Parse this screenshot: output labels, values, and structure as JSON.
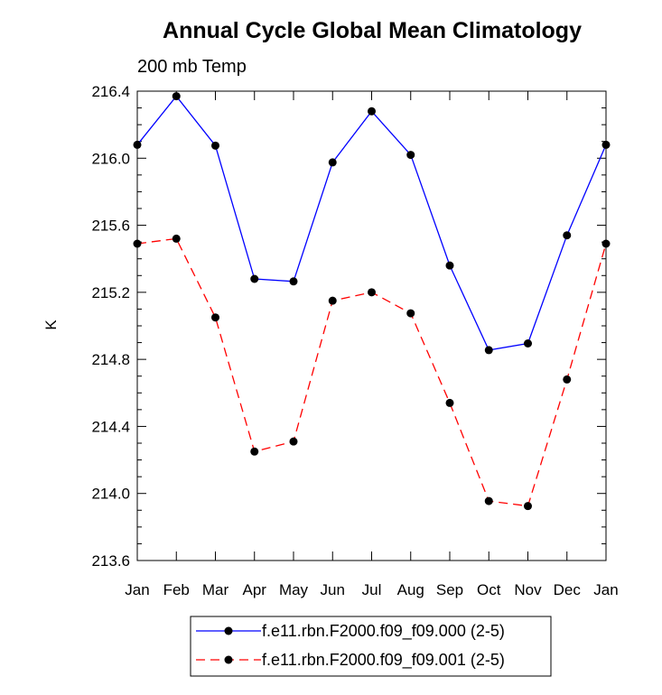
{
  "chart_data": {
    "type": "line",
    "title": "Annual Cycle Global Mean Climatology",
    "subtitle": "200 mb Temp",
    "xlabel": "",
    "ylabel": "K",
    "categories": [
      "Jan",
      "Feb",
      "Mar",
      "Apr",
      "May",
      "Jun",
      "Jul",
      "Aug",
      "Sep",
      "Oct",
      "Nov",
      "Dec",
      "Jan"
    ],
    "ylim": [
      213.6,
      216.4
    ],
    "yticks": [
      213.6,
      214.0,
      214.4,
      214.8,
      215.2,
      215.6,
      216.0,
      216.4
    ],
    "ytick_labels": [
      "213.6",
      "214.0",
      "214.4",
      "214.8",
      "215.2",
      "215.6",
      "216.0",
      "216.4"
    ],
    "grid": false,
    "legend_position": "bottom",
    "series": [
      {
        "name": "f.e11.rbn.F2000.f09_f09.000 (2-5)",
        "color": "#0000ff",
        "dash": "solid",
        "values": [
          216.08,
          216.37,
          216.075,
          215.28,
          215.265,
          215.975,
          216.28,
          216.02,
          215.36,
          214.855,
          214.895,
          215.54,
          216.08
        ]
      },
      {
        "name": "f.e11.rbn.F2000.f09_f09.001 (2-5)",
        "color": "#ff0000",
        "dash": "dashed",
        "values": [
          215.49,
          215.52,
          215.05,
          214.25,
          214.31,
          215.15,
          215.2,
          215.075,
          214.54,
          213.955,
          213.925,
          214.68,
          215.49
        ]
      }
    ]
  }
}
